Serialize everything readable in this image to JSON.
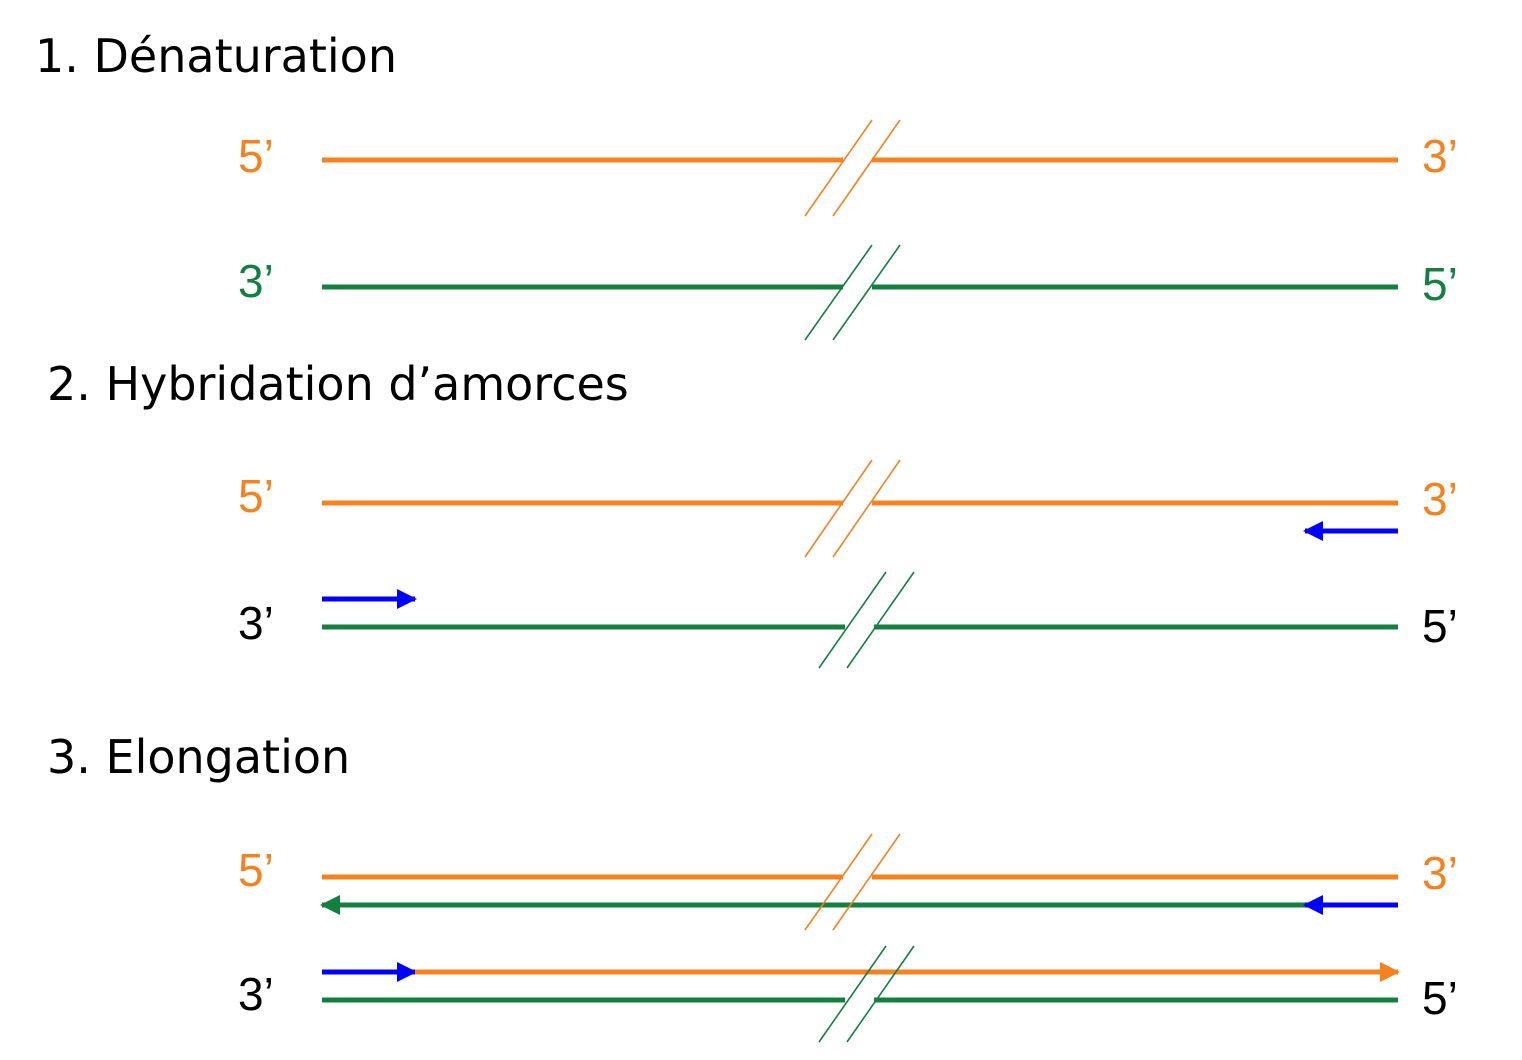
{
  "sections": [
    {
      "title": "1. Dénaturation",
      "strands": [
        {
          "left": "5’",
          "right": "3’"
        },
        {
          "left": "3’",
          "right": "5’"
        }
      ]
    },
    {
      "title": "2. Hybridation d’amorces",
      "strands": [
        {
          "left": "5’",
          "right": "3’"
        },
        {
          "left": "3’",
          "right": "5’"
        }
      ]
    },
    {
      "title": "3. Elongation",
      "strands": [
        {
          "left": "5’",
          "right": "3’"
        },
        {
          "left": "3’",
          "right": "5’"
        }
      ]
    }
  ]
}
